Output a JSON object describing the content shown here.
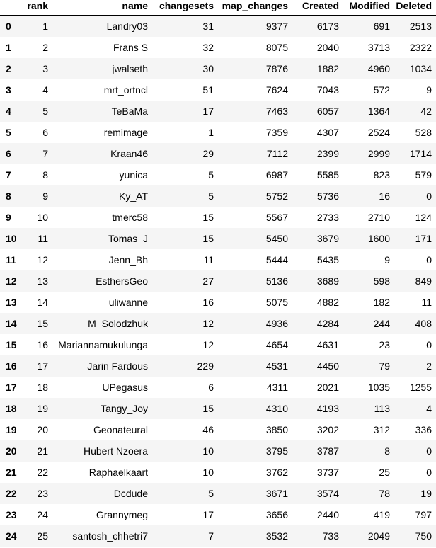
{
  "table": {
    "columns": [
      "rank",
      "name",
      "changesets",
      "map_changes",
      "Created",
      "Modified",
      "Deleted"
    ],
    "rows": [
      [
        "0",
        "1",
        "Landry03",
        "31",
        "9377",
        "6173",
        "691",
        "2513"
      ],
      [
        "1",
        "2",
        "Frans S",
        "32",
        "8075",
        "2040",
        "3713",
        "2322"
      ],
      [
        "2",
        "3",
        "jwalseth",
        "30",
        "7876",
        "1882",
        "4960",
        "1034"
      ],
      [
        "3",
        "4",
        "mrt_ortncl",
        "51",
        "7624",
        "7043",
        "572",
        "9"
      ],
      [
        "4",
        "5",
        "TeBaMa",
        "17",
        "7463",
        "6057",
        "1364",
        "42"
      ],
      [
        "5",
        "6",
        "remimage",
        "1",
        "7359",
        "4307",
        "2524",
        "528"
      ],
      [
        "6",
        "7",
        "Kraan46",
        "29",
        "7112",
        "2399",
        "2999",
        "1714"
      ],
      [
        "7",
        "8",
        "yunica",
        "5",
        "6987",
        "5585",
        "823",
        "579"
      ],
      [
        "8",
        "9",
        "Ky_AT",
        "5",
        "5752",
        "5736",
        "16",
        "0"
      ],
      [
        "9",
        "10",
        "tmerc58",
        "15",
        "5567",
        "2733",
        "2710",
        "124"
      ],
      [
        "10",
        "11",
        "Tomas_J",
        "15",
        "5450",
        "3679",
        "1600",
        "171"
      ],
      [
        "11",
        "12",
        "Jenn_Bh",
        "11",
        "5444",
        "5435",
        "9",
        "0"
      ],
      [
        "12",
        "13",
        "EsthersGeo",
        "27",
        "5136",
        "3689",
        "598",
        "849"
      ],
      [
        "13",
        "14",
        "uliwanne",
        "16",
        "5075",
        "4882",
        "182",
        "11"
      ],
      [
        "14",
        "15",
        "M_Solodzhuk",
        "12",
        "4936",
        "4284",
        "244",
        "408"
      ],
      [
        "15",
        "16",
        "Mariannamukulunga",
        "12",
        "4654",
        "4631",
        "23",
        "0"
      ],
      [
        "16",
        "17",
        "Jarin Fardous",
        "229",
        "4531",
        "4450",
        "79",
        "2"
      ],
      [
        "17",
        "18",
        "UPegasus",
        "6",
        "4311",
        "2021",
        "1035",
        "1255"
      ],
      [
        "18",
        "19",
        "Tangy_Joy",
        "15",
        "4310",
        "4193",
        "113",
        "4"
      ],
      [
        "19",
        "20",
        "Geonateural",
        "46",
        "3850",
        "3202",
        "312",
        "336"
      ],
      [
        "20",
        "21",
        "Hubert Nzoera",
        "10",
        "3795",
        "3787",
        "8",
        "0"
      ],
      [
        "21",
        "22",
        "Raphaelkaart",
        "10",
        "3762",
        "3737",
        "25",
        "0"
      ],
      [
        "22",
        "23",
        "Dcdude",
        "5",
        "3671",
        "3574",
        "78",
        "19"
      ],
      [
        "23",
        "24",
        "Grannymeg",
        "17",
        "3656",
        "2440",
        "419",
        "797"
      ],
      [
        "24",
        "25",
        "santosh_chhetri7",
        "7",
        "3532",
        "733",
        "2049",
        "750"
      ]
    ]
  }
}
